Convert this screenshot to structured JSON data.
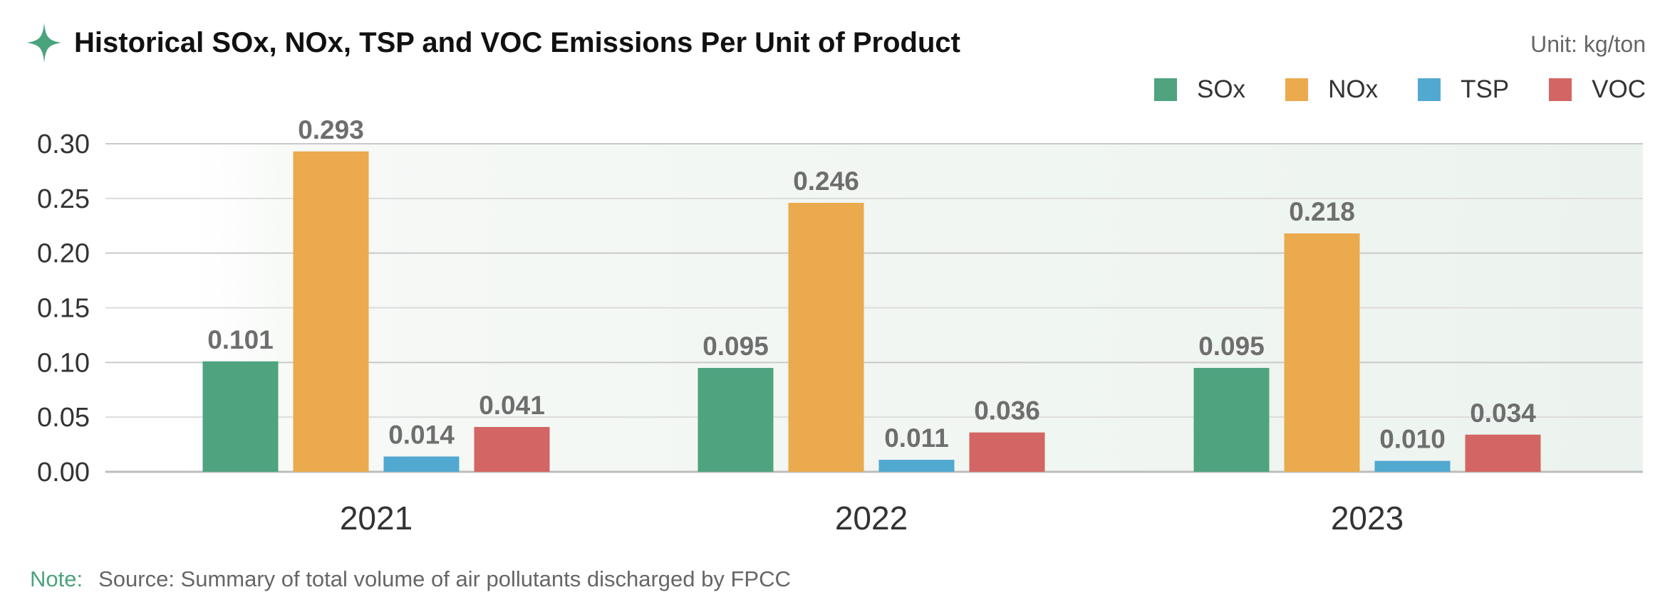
{
  "header": {
    "title": "Historical SOx, NOx, TSP and VOC Emissions Per Unit of Product",
    "unit": "Unit: kg/ton",
    "icon": "sparkle-star-icon"
  },
  "note": {
    "label": "Note:",
    "text": "Source: Summary of total volume of air pollutants discharged by FPCC"
  },
  "colors": {
    "accent": "#4aa37d",
    "background_band": "#f0f5f1"
  },
  "chart_data": {
    "type": "bar",
    "title": "Historical SOx, NOx, TSP and VOC Emissions Per Unit of Product",
    "xlabel": "",
    "ylabel": "",
    "unit": "Unit: kg/ton",
    "categories": [
      "2021",
      "2022",
      "2023"
    ],
    "series": [
      {
        "name": "SOx",
        "color": "#4fa37f",
        "values": [
          0.101,
          0.095,
          0.095
        ],
        "labels": [
          "0.101",
          "0.095",
          "0.095"
        ]
      },
      {
        "name": "NOx",
        "color": "#eaaa4d",
        "values": [
          0.293,
          0.246,
          0.218
        ],
        "labels": [
          "0.293",
          "0.246",
          "0.218"
        ]
      },
      {
        "name": "TSP",
        "color": "#51a8d0",
        "values": [
          0.014,
          0.011,
          0.01
        ],
        "labels": [
          "0.014",
          "0.011",
          "0.010"
        ]
      },
      {
        "name": "VOC",
        "color": "#d36564",
        "values": [
          0.041,
          0.036,
          0.034
        ],
        "labels": [
          "0.041",
          "0.036",
          "0.034"
        ]
      }
    ],
    "ylim": [
      0,
      0.3
    ],
    "yticks": [
      "0.00",
      "0.05",
      "0.10",
      "0.15",
      "0.20",
      "0.25",
      "0.30"
    ],
    "grid": true,
    "legend_position": "top-right"
  }
}
